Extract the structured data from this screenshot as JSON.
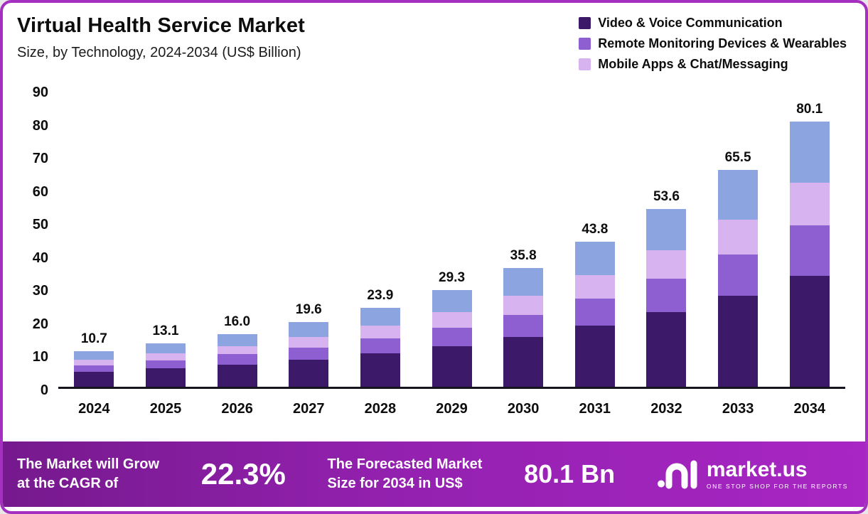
{
  "chart_data": {
    "type": "bar",
    "stacked": true,
    "title": "Virtual Health Service Market",
    "subtitle": "Size, by Technology, 2024-2034 (US$ Billion)",
    "xlabel": "",
    "ylabel": "US$ Billion",
    "ylim": [
      0,
      90
    ],
    "yticks": [
      0,
      10,
      20,
      30,
      40,
      50,
      60,
      70,
      80,
      90
    ],
    "grid": false,
    "legend_position": "top-right",
    "categories": [
      "2024",
      "2025",
      "2026",
      "2027",
      "2028",
      "2029",
      "2030",
      "2031",
      "2032",
      "2033",
      "2034"
    ],
    "totals": [
      10.7,
      13.1,
      16.0,
      19.6,
      23.9,
      29.3,
      35.8,
      43.8,
      53.6,
      65.5,
      80.1
    ],
    "total_labels": [
      "10.7",
      "13.1",
      "16.0",
      "19.6",
      "23.9",
      "29.3",
      "35.8",
      "43.8",
      "53.6",
      "65.5",
      "80.1"
    ],
    "series": [
      {
        "name": "Video & Voice Communication",
        "color": "#3d1a69",
        "in_legend": true,
        "values": [
          4.5,
          5.5,
          6.7,
          8.2,
          10.0,
          12.3,
          15.0,
          18.4,
          22.5,
          27.5,
          33.6
        ]
      },
      {
        "name": "Remote Monitoring Devices & Wearables",
        "color": "#8e5fd0",
        "in_legend": true,
        "values": [
          2.0,
          2.5,
          3.1,
          3.7,
          4.6,
          5.6,
          6.8,
          8.3,
          10.2,
          12.5,
          15.2
        ]
      },
      {
        "name": "Mobile Apps & Chat/Messaging",
        "color": "#d7b3f0",
        "in_legend": true,
        "values": [
          1.7,
          2.1,
          2.5,
          3.2,
          3.8,
          4.7,
          5.7,
          7.0,
          8.6,
          10.4,
          12.9
        ]
      },
      {
        "name": "",
        "color": "#8ca4e0",
        "in_legend": false,
        "values": [
          2.5,
          3.0,
          3.7,
          4.5,
          5.5,
          6.7,
          8.3,
          10.1,
          12.3,
          15.1,
          18.4
        ]
      }
    ]
  },
  "banner": {
    "grow_line1": "The Market will Grow",
    "grow_line2": "at the CAGR of",
    "cagr_value": "22.3%",
    "forecast_line1": "The Forecasted Market",
    "forecast_line2": "Size for 2034 in US$",
    "forecast_value": "80.1 Bn",
    "brand_name": "market.us",
    "brand_tagline": "ONE STOP SHOP FOR THE REPORTS"
  }
}
